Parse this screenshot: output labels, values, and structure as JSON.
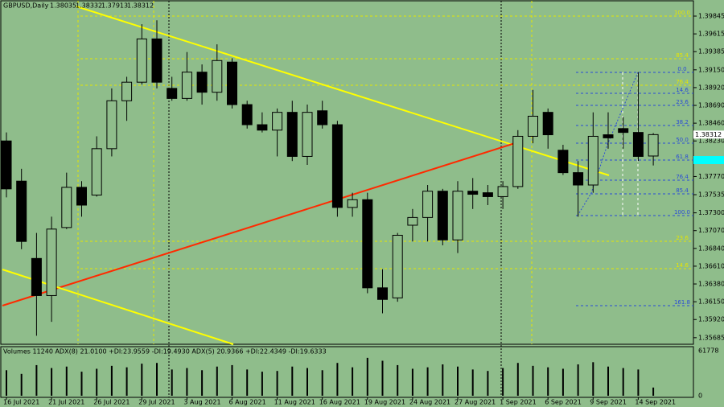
{
  "chart_data": {
    "type": "candlestick",
    "title": "GBPUSD,Daily",
    "categories": [
      "16 Jul 2021",
      null,
      null,
      "21 Jul 2021",
      null,
      null,
      "26 Jul 2021",
      null,
      null,
      "29 Jul 2021",
      null,
      null,
      "3 Aug 2021",
      null,
      null,
      "6 Aug 2021",
      null,
      null,
      "11 Aug 2021",
      null,
      null,
      "16 Aug 2021",
      null,
      null,
      "19 Aug 2021",
      null,
      null,
      "24 Aug 2021",
      null,
      null,
      "27 Aug 2021",
      null,
      null,
      "1 Sep 2021",
      null,
      null,
      "6 Sep 2021",
      null,
      null,
      "9 Sep 2021",
      null,
      null,
      "14 Sep 2021",
      null
    ],
    "open": [
      1.3823,
      1.3771,
      1.3671,
      1.3623,
      1.3711,
      1.3763,
      1.3753,
      1.3813,
      1.3875,
      1.3899,
      1.3955,
      1.3891,
      1.3878,
      1.3912,
      1.3886,
      1.3925,
      1.387,
      1.3844,
      1.3837,
      1.386,
      1.3803,
      1.3862,
      1.3844,
      1.3737,
      1.3747,
      1.3633,
      1.362,
      1.3714,
      1.3724,
      1.3758,
      1.3695,
      1.3758,
      1.3756,
      1.3751,
      1.3764,
      1.3829,
      1.386,
      1.3811,
      1.3782,
      1.3766,
      1.3831,
      1.3839,
      1.3834,
      1.38035
    ],
    "high": [
      1.3834,
      1.3787,
      1.3704,
      1.3725,
      1.3782,
      1.3771,
      1.3829,
      1.3891,
      1.3906,
      1.3974,
      1.3979,
      1.3906,
      1.3938,
      1.3922,
      1.3948,
      1.393,
      1.3875,
      1.386,
      1.3865,
      1.3875,
      1.387,
      1.3875,
      1.3849,
      1.3756,
      1.3756,
      1.3657,
      1.3704,
      1.3735,
      1.3766,
      1.3761,
      1.3771,
      1.3775,
      1.3766,
      1.3771,
      1.3837,
      1.3889,
      1.3865,
      1.3818,
      1.3797,
      1.386,
      1.386,
      1.3854,
      1.3912,
      1.38332
    ],
    "low": [
      1.375,
      1.3683,
      1.3571,
      1.3589,
      1.3709,
      1.3725,
      1.3751,
      1.3803,
      1.3849,
      1.3896,
      1.3891,
      1.3875,
      1.3875,
      1.387,
      1.3875,
      1.3865,
      1.3839,
      1.3834,
      1.3803,
      1.3797,
      1.3792,
      1.3839,
      1.3725,
      1.3725,
      1.3626,
      1.36,
      1.3615,
      1.3693,
      1.3693,
      1.3688,
      1.3678,
      1.3735,
      1.374,
      1.3735,
      1.3761,
      1.382,
      1.3813,
      1.3779,
      1.3725,
      1.3756,
      1.3813,
      1.3813,
      1.3797,
      1.37913
    ],
    "close": [
      1.3761,
      1.3693,
      1.3623,
      1.3709,
      1.3763,
      1.374,
      1.3813,
      1.3875,
      1.3899,
      1.3955,
      1.3899,
      1.3878,
      1.3912,
      1.3886,
      1.3927,
      1.387,
      1.3844,
      1.3837,
      1.386,
      1.3803,
      1.386,
      1.3844,
      1.3737,
      1.3747,
      1.3633,
      1.3618,
      1.3701,
      1.3724,
      1.3758,
      1.3695,
      1.3758,
      1.3754,
      1.3751,
      1.3764,
      1.3829,
      1.3855,
      1.3831,
      1.3782,
      1.3766,
      1.3829,
      1.3827,
      1.3834,
      1.3803,
      1.38312
    ],
    "ylim": [
      1.356,
      1.3997
    ],
    "yticks": [
      1.39845,
      1.39615,
      1.39385,
      {
        "value": 1.3915,
        "label": "1.39150"
      },
      {
        "value": 1.3892,
        "label": "1.38920"
      },
      {
        "value": 1.3869,
        "label": "1.38690"
      },
      {
        "value": 1.3846,
        "label": "1.38460"
      },
      {
        "value": 1.3823,
        "label": "1.38230"
      },
      {
        "value": 1.3777,
        "label": "1.37770"
      },
      1.37535,
      {
        "value": 1.373,
        "label": "1.37300"
      },
      {
        "value": 1.3707,
        "label": "1.37070"
      },
      {
        "value": 1.3684,
        "label": "1.36840"
      },
      {
        "value": 1.3661,
        "label": "1.36610"
      },
      {
        "value": 1.3638,
        "label": "1.36380"
      },
      {
        "value": 1.3615,
        "label": "1.36150"
      },
      {
        "value": 1.3592,
        "label": "1.35920"
      },
      1.35685
    ],
    "fib_labels": [
      "100.0",
      "85.4",
      "0.0",
      "76.4",
      "14.6",
      "23.6",
      "38.2",
      "50.0",
      "61.8",
      "76.4",
      "85.4",
      "100.0",
      "23.6",
      "14.6",
      "161.8"
    ],
    "indicator_title": "Volumes 11240  ADX(8) 21.0100 +DI:23.9559 -DI:19.4930  ADX(5) 20.9366 +DI:22.4349 -DI:19.6333",
    "volume": {
      "values": [
        35000,
        30000,
        42000,
        38000,
        40000,
        33000,
        37000,
        41000,
        39000,
        44000,
        45000,
        36000,
        38000,
        35000,
        40000,
        42000,
        36000,
        33000,
        34000,
        40000,
        38000,
        35000,
        45000,
        39000,
        52000,
        48000,
        42000,
        37000,
        39000,
        43000,
        40000,
        36000,
        34000,
        38000,
        45000,
        41000,
        39000,
        37000,
        43000,
        46000,
        40000,
        38000,
        36000,
        11240
      ],
      "ylim": [
        0,
        61778
      ],
      "yticks": [
        0,
        61778
      ]
    }
  }
}
